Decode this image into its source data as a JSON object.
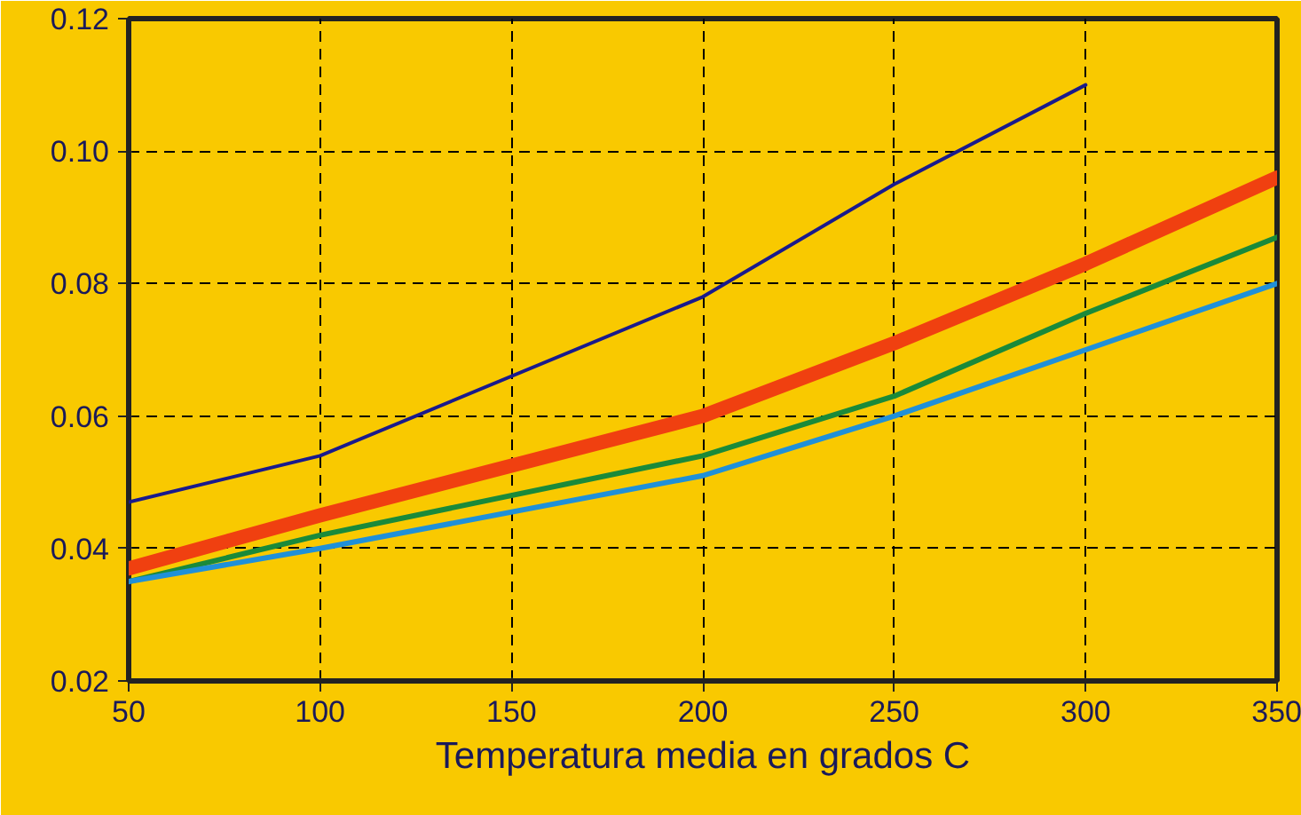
{
  "chart_data": {
    "type": "line",
    "xlabel": "Temperatura media en grados C",
    "x": [
      50,
      100,
      200,
      250,
      300,
      350
    ],
    "series": [
      {
        "color": "#1a1a8c",
        "values": [
          0.047,
          0.054,
          0.078,
          0.095,
          0.11,
          null
        ]
      },
      {
        "color": "#f04010",
        "values": [
          0.037,
          0.045,
          0.06,
          0.071,
          0.083,
          0.096
        ]
      },
      {
        "color": "#1a8a3a",
        "values": [
          0.035,
          0.042,
          0.054,
          0.063,
          0.0755,
          0.087
        ]
      },
      {
        "color": "#2090d8",
        "values": [
          0.035,
          0.04,
          0.051,
          0.06,
          0.07,
          0.08
        ]
      }
    ],
    "xlim": [
      50,
      350
    ],
    "ylim": [
      0.02,
      0.12
    ],
    "xticks": [
      50,
      100,
      150,
      200,
      250,
      300,
      350
    ],
    "yticks": [
      {
        "value": 0.02,
        "label": "0.02"
      },
      {
        "value": 0.04,
        "label": "0.04"
      },
      {
        "value": 0.06,
        "label": "0.06"
      },
      {
        "value": 0.08,
        "label": "0.08"
      },
      {
        "value": 0.1,
        "label": "0.10"
      },
      {
        "value": 0.12,
        "label": "0.12"
      }
    ],
    "grid": true,
    "line_style": "solid",
    "marker": "none"
  }
}
